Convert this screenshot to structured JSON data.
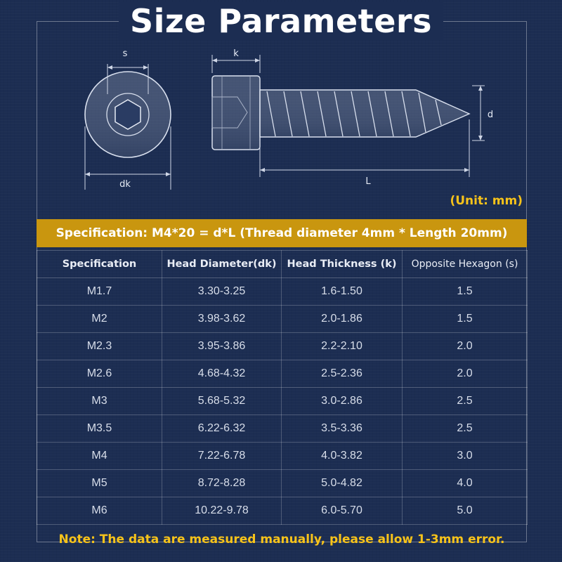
{
  "title": "Size Parameters",
  "diagram": {
    "label_s": "s",
    "label_dk": "dk",
    "label_k": "k",
    "label_d": "d",
    "label_L": "L"
  },
  "unit_label": "(Unit: mm)",
  "spec_banner": "Specification: M4*20 = d*L (Thread diameter 4mm * Length 20mm)",
  "table": {
    "headers": [
      "Specification",
      "Head Diameter(dk)",
      "Head Thickness (k)",
      "Opposite Hexagon (s)"
    ],
    "rows": [
      [
        "M1.7",
        "3.30-3.25",
        "1.6-1.50",
        "1.5"
      ],
      [
        "M2",
        "3.98-3.62",
        "2.0-1.86",
        "1.5"
      ],
      [
        "M2.3",
        "3.95-3.86",
        "2.2-2.10",
        "2.0"
      ],
      [
        "M2.6",
        "4.68-4.32",
        "2.5-2.36",
        "2.0"
      ],
      [
        "M3",
        "5.68-5.32",
        "3.0-2.86",
        "2.5"
      ],
      [
        "M3.5",
        "6.22-6.32",
        "3.5-3.36",
        "2.5"
      ],
      [
        "M4",
        "7.22-6.78",
        "4.0-3.82",
        "3.0"
      ],
      [
        "M5",
        "8.72-8.28",
        "5.0-4.82",
        "4.0"
      ],
      [
        "M6",
        "10.22-9.78",
        "6.0-5.70",
        "5.0"
      ]
    ]
  },
  "note": "Note: The data are measured manually, please allow 1-3mm error.",
  "colors": {
    "background": "#1c2d52",
    "accent_gold": "#c9960f",
    "note_yellow": "#f7c31a"
  }
}
